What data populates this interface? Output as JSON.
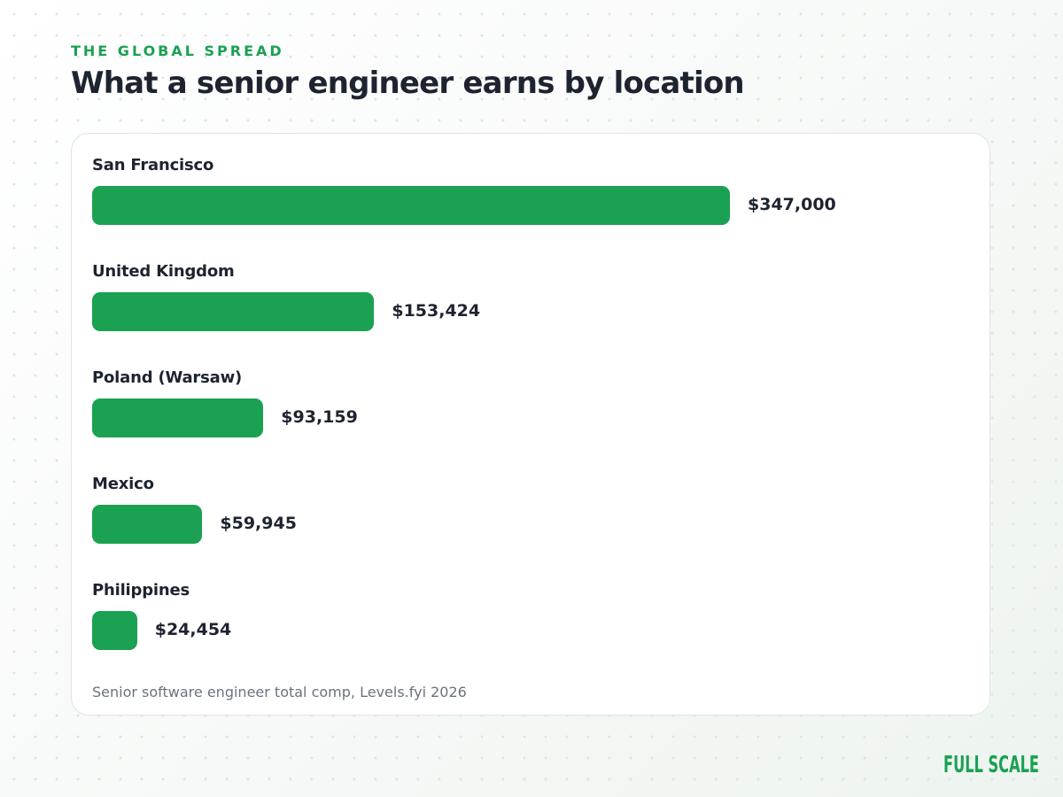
{
  "header": {
    "eyebrow": "THE GLOBAL SPREAD",
    "title": "What a senior engineer earns by location"
  },
  "chart_data": {
    "type": "bar",
    "orientation": "horizontal",
    "categories": [
      "San Francisco",
      "United Kingdom",
      "Poland (Warsaw)",
      "Mexico",
      "Philippines"
    ],
    "values": [
      347000,
      153424,
      93159,
      59945,
      24454
    ],
    "value_labels": [
      "$347,000",
      "$153,424",
      "$93,159",
      "$59,945",
      "$24,454"
    ],
    "title": "What a senior engineer earns by location",
    "xlabel": "",
    "ylabel": "",
    "xlim": [
      0,
      347000
    ],
    "grid": false,
    "legend": "none",
    "bar_color": "#1aa152"
  },
  "footer": {
    "source": "Senior software engineer total comp, Levels.fyi 2026"
  },
  "brand": {
    "logo_text": "FULL SCALE",
    "color": "#1aa152"
  }
}
